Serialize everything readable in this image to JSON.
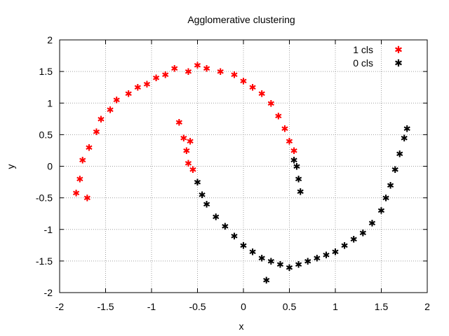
{
  "chart_data": {
    "type": "scatter",
    "title": "Agglomerative clustering",
    "xlabel": "x",
    "ylabel": "y",
    "xlim": [
      -2,
      2
    ],
    "ylim": [
      -2,
      2
    ],
    "x_ticks": [
      "-2",
      "-1.5",
      "-1",
      "-0.5",
      "0",
      "0.5",
      "1",
      "1.5",
      "2"
    ],
    "y_ticks": [
      "-2",
      "-1.5",
      "-1",
      "-0.5",
      "0",
      "0.5",
      "1",
      "1.5",
      "2"
    ],
    "grid": true,
    "legend_position": "top-right",
    "series": [
      {
        "name": "1 cls",
        "color": "#ff0000",
        "marker": "star",
        "points": [
          [
            -1.82,
            -0.42
          ],
          [
            -1.78,
            -0.2
          ],
          [
            -1.75,
            0.1
          ],
          [
            -1.7,
            -0.5
          ],
          [
            -1.68,
            0.3
          ],
          [
            -1.6,
            0.55
          ],
          [
            -1.55,
            0.75
          ],
          [
            -1.45,
            0.9
          ],
          [
            -1.38,
            1.05
          ],
          [
            -1.25,
            1.15
          ],
          [
            -1.15,
            1.25
          ],
          [
            -1.05,
            1.3
          ],
          [
            -0.95,
            1.4
          ],
          [
            -0.85,
            1.45
          ],
          [
            -0.75,
            1.55
          ],
          [
            -0.6,
            1.5
          ],
          [
            -0.5,
            1.6
          ],
          [
            -0.4,
            1.55
          ],
          [
            -0.25,
            1.5
          ],
          [
            -0.1,
            1.45
          ],
          [
            0.0,
            1.35
          ],
          [
            0.1,
            1.25
          ],
          [
            0.2,
            1.15
          ],
          [
            0.3,
            1.0
          ],
          [
            0.38,
            0.8
          ],
          [
            0.45,
            0.6
          ],
          [
            0.5,
            0.4
          ],
          [
            0.55,
            0.25
          ],
          [
            -0.7,
            0.7
          ],
          [
            -0.65,
            0.45
          ],
          [
            -0.62,
            0.25
          ],
          [
            -0.6,
            0.05
          ],
          [
            -0.55,
            -0.05
          ],
          [
            -0.58,
            0.4
          ]
        ]
      },
      {
        "name": "0 cls",
        "color": "#000000",
        "marker": "star",
        "points": [
          [
            -0.5,
            -0.25
          ],
          [
            -0.45,
            -0.45
          ],
          [
            -0.4,
            -0.6
          ],
          [
            -0.3,
            -0.8
          ],
          [
            -0.2,
            -0.95
          ],
          [
            -0.1,
            -1.1
          ],
          [
            0.0,
            -1.25
          ],
          [
            0.1,
            -1.35
          ],
          [
            0.2,
            -1.45
          ],
          [
            0.3,
            -1.5
          ],
          [
            0.4,
            -1.55
          ],
          [
            0.5,
            -1.6
          ],
          [
            0.6,
            -1.55
          ],
          [
            0.7,
            -1.5
          ],
          [
            0.8,
            -1.45
          ],
          [
            0.9,
            -1.4
          ],
          [
            1.0,
            -1.35
          ],
          [
            1.1,
            -1.25
          ],
          [
            1.2,
            -1.15
          ],
          [
            1.3,
            -1.05
          ],
          [
            1.4,
            -0.9
          ],
          [
            1.5,
            -0.7
          ],
          [
            1.55,
            -0.5
          ],
          [
            1.6,
            -0.3
          ],
          [
            1.65,
            -0.05
          ],
          [
            1.7,
            0.2
          ],
          [
            1.75,
            0.45
          ],
          [
            1.78,
            0.6
          ],
          [
            0.25,
            -1.8
          ],
          [
            0.55,
            0.1
          ],
          [
            0.6,
            -0.2
          ],
          [
            0.62,
            -0.4
          ],
          [
            0.58,
            0.0
          ]
        ]
      }
    ]
  }
}
